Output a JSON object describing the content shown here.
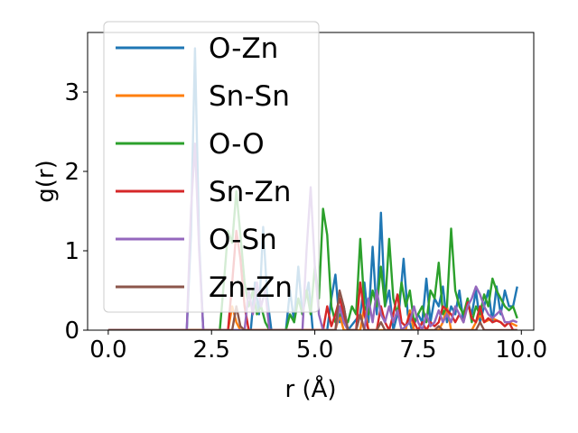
{
  "chart_data": {
    "type": "line",
    "xlabel": "r (Å)",
    "ylabel": "g(r)",
    "xlim": [
      -0.5,
      10.3
    ],
    "ylim": [
      0,
      3.75
    ],
    "xticks": [
      "0.0",
      "2.5",
      "5.0",
      "7.5",
      "10.0"
    ],
    "yticks": [
      "0",
      "1",
      "2",
      "3"
    ],
    "grid": false,
    "legend_position": "upper-left",
    "series": [
      {
        "name": "O-Zn",
        "color": "#1f77b4",
        "points": [
          [
            0,
            0
          ],
          [
            1.9,
            0
          ],
          [
            2.0,
            1.2
          ],
          [
            2.1,
            3.55
          ],
          [
            2.2,
            1.1
          ],
          [
            2.3,
            0
          ],
          [
            3.45,
            0
          ],
          [
            3.55,
            0.6
          ],
          [
            3.65,
            0.2
          ],
          [
            3.75,
            1.3
          ],
          [
            3.85,
            0.4
          ],
          [
            3.95,
            0
          ],
          [
            4.3,
            0
          ],
          [
            4.4,
            0.5
          ],
          [
            4.5,
            0.1
          ],
          [
            4.6,
            0.8
          ],
          [
            4.7,
            0.2
          ],
          [
            4.85,
            0.6
          ],
          [
            4.95,
            0
          ],
          [
            5.3,
            0
          ],
          [
            5.4,
            0.4
          ],
          [
            5.5,
            0.7
          ],
          [
            5.6,
            0.1
          ],
          [
            5.7,
            0.3
          ],
          [
            5.8,
            0
          ],
          [
            6.1,
            0.2
          ],
          [
            6.2,
            0.6
          ],
          [
            6.3,
            0.1
          ],
          [
            6.4,
            1.05
          ],
          [
            6.5,
            0.2
          ],
          [
            6.6,
            1.48
          ],
          [
            6.7,
            0.3
          ],
          [
            6.8,
            0.5
          ],
          [
            6.9,
            0
          ],
          [
            7.05,
            0.3
          ],
          [
            7.15,
            0.9
          ],
          [
            7.25,
            0.2
          ],
          [
            7.35,
            0
          ],
          [
            7.5,
            0.2
          ],
          [
            7.6,
            0.1
          ],
          [
            7.7,
            0.65
          ],
          [
            7.8,
            0.1
          ],
          [
            7.9,
            0.4
          ],
          [
            8.0,
            0.3
          ],
          [
            8.1,
            0.55
          ],
          [
            8.2,
            0.1
          ],
          [
            8.3,
            0.3
          ],
          [
            8.4,
            0.2
          ],
          [
            8.5,
            0.5
          ],
          [
            8.6,
            0.1
          ],
          [
            8.7,
            0.35
          ],
          [
            8.8,
            0.2
          ],
          [
            8.9,
            0.5
          ],
          [
            9.0,
            0.1
          ],
          [
            9.1,
            0.3
          ],
          [
            9.2,
            0.5
          ],
          [
            9.3,
            0.1
          ],
          [
            9.4,
            0.55
          ],
          [
            9.5,
            0.2
          ],
          [
            9.6,
            0.5
          ],
          [
            9.7,
            0.3
          ],
          [
            9.8,
            0.3
          ],
          [
            9.9,
            0.55
          ]
        ]
      },
      {
        "name": "Sn-Sn",
        "color": "#ff7f0e",
        "points": [
          [
            0,
            0
          ],
          [
            2.9,
            0
          ],
          [
            3.0,
            0.3
          ],
          [
            3.1,
            0.1
          ],
          [
            3.2,
            0
          ],
          [
            5.5,
            0
          ],
          [
            5.6,
            0.2
          ],
          [
            5.7,
            0
          ],
          [
            6.1,
            0
          ],
          [
            6.2,
            0.3
          ],
          [
            6.3,
            0
          ],
          [
            7.2,
            0
          ],
          [
            7.3,
            0.25
          ],
          [
            7.4,
            0
          ],
          [
            8.0,
            0
          ],
          [
            8.1,
            0.1
          ],
          [
            8.2,
            0.3
          ],
          [
            8.3,
            0
          ],
          [
            8.8,
            0
          ],
          [
            8.9,
            0.1
          ],
          [
            9.0,
            0.2
          ],
          [
            9.1,
            0.1
          ],
          [
            9.3,
            0.15
          ],
          [
            9.5,
            0.1
          ],
          [
            9.6,
            0.05
          ],
          [
            9.7,
            0.1
          ],
          [
            9.9,
            0.05
          ]
        ]
      },
      {
        "name": "O-O",
        "color": "#2ca02c",
        "points": [
          [
            0,
            0
          ],
          [
            2.7,
            0
          ],
          [
            2.8,
            0.6
          ],
          [
            2.9,
            1.25
          ],
          [
            3.0,
            1.1
          ],
          [
            3.1,
            1.75
          ],
          [
            3.2,
            1.2
          ],
          [
            3.3,
            0.6
          ],
          [
            3.4,
            0.3
          ],
          [
            3.5,
            0.5
          ],
          [
            3.6,
            0.2
          ],
          [
            3.7,
            0.3
          ],
          [
            3.8,
            0.1
          ],
          [
            3.9,
            0
          ],
          [
            4.3,
            0
          ],
          [
            4.4,
            0.2
          ],
          [
            4.5,
            0.1
          ],
          [
            4.6,
            0.4
          ],
          [
            4.7,
            0.2
          ],
          [
            4.8,
            0.5
          ],
          [
            4.9,
            0.2
          ],
          [
            5.0,
            0.8
          ],
          [
            5.1,
            0.4
          ],
          [
            5.2,
            1.53
          ],
          [
            5.3,
            1.2
          ],
          [
            5.4,
            0.3
          ],
          [
            5.5,
            0.1
          ],
          [
            5.6,
            0.2
          ],
          [
            5.8,
            0.1
          ],
          [
            5.9,
            0.3
          ],
          [
            6.0,
            0.2
          ],
          [
            6.1,
            1.15
          ],
          [
            6.2,
            0.3
          ],
          [
            6.3,
            0.2
          ],
          [
            6.4,
            0.5
          ],
          [
            6.5,
            0.3
          ],
          [
            6.6,
            0.8
          ],
          [
            6.7,
            0.3
          ],
          [
            6.8,
            1.15
          ],
          [
            6.9,
            0.4
          ],
          [
            7.0,
            0.2
          ],
          [
            7.1,
            0.6
          ],
          [
            7.2,
            0.3
          ],
          [
            7.3,
            0.5
          ],
          [
            7.4,
            0.1
          ],
          [
            7.6,
            0.3
          ],
          [
            7.7,
            0.1
          ],
          [
            7.8,
            0.5
          ],
          [
            7.9,
            0.4
          ],
          [
            8.0,
            0.85
          ],
          [
            8.1,
            0.2
          ],
          [
            8.2,
            0.3
          ],
          [
            8.3,
            1.28
          ],
          [
            8.4,
            0.5
          ],
          [
            8.5,
            0.3
          ],
          [
            8.6,
            0.2
          ],
          [
            8.7,
            0.4
          ],
          [
            8.8,
            0.1
          ],
          [
            8.9,
            0.3
          ],
          [
            9.0,
            0.2
          ],
          [
            9.1,
            0.45
          ],
          [
            9.2,
            0.3
          ],
          [
            9.3,
            0.65
          ],
          [
            9.4,
            0.5
          ],
          [
            9.5,
            0.4
          ],
          [
            9.6,
            0.3
          ],
          [
            9.7,
            0.25
          ],
          [
            9.8,
            0.3
          ],
          [
            9.9,
            0.15
          ]
        ]
      },
      {
        "name": "Sn-Zn",
        "color": "#d62728",
        "points": [
          [
            0,
            0
          ],
          [
            2.9,
            0
          ],
          [
            3.0,
            0.6
          ],
          [
            3.1,
            1.25
          ],
          [
            3.2,
            0.9
          ],
          [
            3.3,
            0.3
          ],
          [
            3.4,
            0
          ],
          [
            5.2,
            0
          ],
          [
            5.3,
            0.3
          ],
          [
            5.4,
            0.05
          ],
          [
            5.5,
            0.2
          ],
          [
            5.6,
            0.4
          ],
          [
            5.7,
            0.2
          ],
          [
            5.8,
            0
          ],
          [
            6.0,
            0
          ],
          [
            6.1,
            0.6
          ],
          [
            6.2,
            0.2
          ],
          [
            6.3,
            0
          ],
          [
            6.5,
            0
          ],
          [
            6.6,
            0.3
          ],
          [
            6.7,
            0.1
          ],
          [
            6.8,
            0
          ],
          [
            6.9,
            0.2
          ],
          [
            7.0,
            0.45
          ],
          [
            7.1,
            0.1
          ],
          [
            7.2,
            0.05
          ],
          [
            7.3,
            0.2
          ],
          [
            7.4,
            0.1
          ],
          [
            7.5,
            0
          ],
          [
            7.6,
            0.1
          ],
          [
            7.7,
            0
          ],
          [
            7.8,
            0.1
          ],
          [
            7.9,
            0.05
          ],
          [
            8.0,
            0.1
          ],
          [
            8.1,
            0.3
          ],
          [
            8.2,
            0.25
          ],
          [
            8.3,
            0.2
          ],
          [
            8.4,
            0.1
          ],
          [
            8.5,
            0.2
          ],
          [
            8.6,
            0.1
          ],
          [
            8.7,
            0.35
          ],
          [
            8.8,
            0.15
          ],
          [
            8.9,
            0.1
          ],
          [
            9.0,
            0.3
          ],
          [
            9.1,
            0.1
          ],
          [
            9.2,
            0.15
          ],
          [
            9.3,
            0.1
          ],
          [
            9.4,
            0.12
          ],
          [
            9.5,
            0.1
          ],
          [
            9.6,
            0.05
          ],
          [
            9.7,
            0.1
          ],
          [
            9.8,
            0
          ],
          [
            9.9,
            0
          ]
        ]
      },
      {
        "name": "O-Sn",
        "color": "#9467bd",
        "points": [
          [
            0,
            0
          ],
          [
            1.9,
            0
          ],
          [
            2.0,
            1.5
          ],
          [
            2.1,
            2.35
          ],
          [
            2.2,
            1.0
          ],
          [
            2.3,
            0
          ],
          [
            3.3,
            0
          ],
          [
            3.4,
            0.5
          ],
          [
            3.5,
            0.2
          ],
          [
            3.6,
            0.6
          ],
          [
            3.7,
            0.3
          ],
          [
            3.8,
            0.5
          ],
          [
            3.9,
            0
          ],
          [
            4.7,
            0
          ],
          [
            4.8,
            1.0
          ],
          [
            4.9,
            1.8
          ],
          [
            5.0,
            0.8
          ],
          [
            5.1,
            0.2
          ],
          [
            5.2,
            0
          ],
          [
            5.5,
            0
          ],
          [
            5.6,
            0.3
          ],
          [
            5.7,
            0.1
          ],
          [
            5.8,
            0
          ],
          [
            6.0,
            0
          ],
          [
            6.1,
            0.2
          ],
          [
            6.2,
            0
          ],
          [
            6.3,
            0.4
          ],
          [
            6.4,
            0.1
          ],
          [
            6.5,
            0.5
          ],
          [
            6.6,
            0.2
          ],
          [
            6.7,
            0.1
          ],
          [
            6.8,
            0.3
          ],
          [
            6.9,
            0.1
          ],
          [
            7.0,
            0.25
          ],
          [
            7.1,
            0
          ],
          [
            7.3,
            0.1
          ],
          [
            7.4,
            0.3
          ],
          [
            7.5,
            0.1
          ],
          [
            7.6,
            0
          ],
          [
            7.7,
            0.2
          ],
          [
            7.8,
            0.05
          ],
          [
            7.9,
            0.1
          ],
          [
            8.0,
            0.25
          ],
          [
            8.1,
            0.1
          ],
          [
            8.2,
            0.2
          ],
          [
            8.3,
            0.1
          ],
          [
            8.4,
            0.3
          ],
          [
            8.5,
            0.2
          ],
          [
            8.6,
            0.1
          ],
          [
            8.7,
            0.3
          ],
          [
            8.8,
            0.4
          ],
          [
            8.9,
            0.55
          ],
          [
            9.0,
            0.45
          ],
          [
            9.1,
            0.3
          ],
          [
            9.2,
            0.2
          ],
          [
            9.3,
            0.15
          ],
          [
            9.4,
            0.2
          ],
          [
            9.5,
            0.25
          ],
          [
            9.6,
            0.1
          ],
          [
            9.7,
            0.1
          ],
          [
            9.8,
            0.12
          ],
          [
            9.9,
            0.1
          ]
        ]
      },
      {
        "name": "Zn-Zn",
        "color": "#8c564b",
        "points": [
          [
            0,
            0
          ],
          [
            3.0,
            0
          ],
          [
            3.1,
            0.3
          ],
          [
            3.2,
            0.05
          ],
          [
            3.3,
            0
          ],
          [
            5.5,
            0
          ],
          [
            5.6,
            0.5
          ],
          [
            5.7,
            0.3
          ],
          [
            5.8,
            0
          ],
          [
            6.0,
            0
          ],
          [
            6.1,
            0.2
          ],
          [
            6.2,
            0
          ],
          [
            6.5,
            0
          ],
          [
            6.6,
            0.1
          ],
          [
            6.7,
            0
          ],
          [
            7.9,
            0
          ],
          [
            8.0,
            0.05
          ],
          [
            8.1,
            0
          ],
          [
            8.9,
            0
          ],
          [
            9.0,
            0.1
          ],
          [
            9.1,
            0
          ],
          [
            9.9,
            0
          ]
        ]
      }
    ]
  }
}
